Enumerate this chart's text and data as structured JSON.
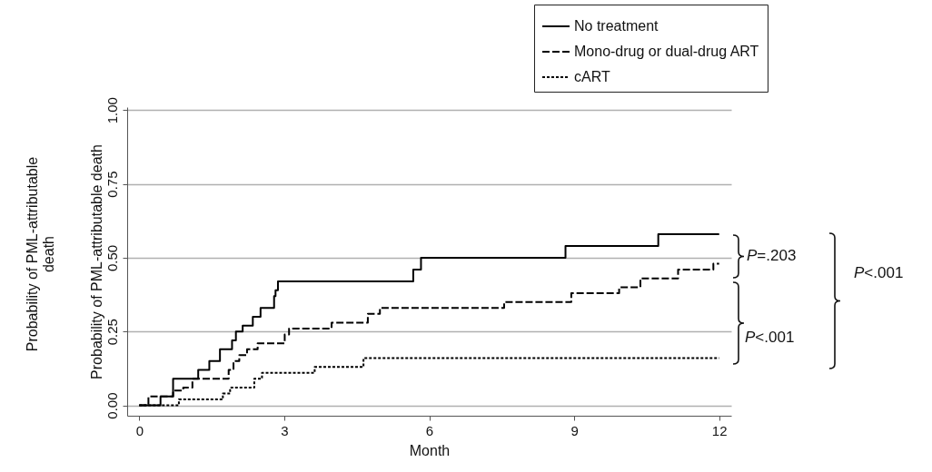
{
  "chart_data": {
    "type": "step",
    "xlabel": "Month",
    "ylabel": "Probability of PML-attributable death",
    "xlim": [
      -0.25,
      12.25
    ],
    "ylim": [
      -0.035,
      1.01
    ],
    "xticks": [
      0,
      3,
      6,
      9,
      12
    ],
    "yticks": [
      {
        "value": 0,
        "label": "0.00"
      },
      {
        "value": 0.25,
        "label": "0.25"
      },
      {
        "value": 0.5,
        "label": "0.50"
      },
      {
        "value": 0.75,
        "label": "0.75"
      },
      {
        "value": 1,
        "label": "1.00"
      }
    ],
    "grid": "y",
    "legend": "top right",
    "annotations": [
      "P=.203",
      "P<.001",
      "P<.001",
      "Probability of PML-attributable death"
    ],
    "series": [
      {
        "name": "No treatment",
        "color": "#000000",
        "line_style": "solid",
        "x": [
          0,
          0.44,
          0.7,
          1.22,
          1.45,
          1.67,
          1.92,
          2.0,
          2.14,
          2.35,
          2.51,
          2.79,
          2.82,
          2.87,
          5.67,
          5.83,
          8.82,
          10.74,
          12
        ],
        "values": [
          0,
          0.03,
          0.09,
          0.12,
          0.15,
          0.19,
          0.22,
          0.25,
          0.27,
          0.3,
          0.33,
          0.37,
          0.39,
          0.42,
          0.46,
          0.5,
          0.54,
          0.58,
          0.58
        ]
      },
      {
        "name": "Mono-drug or dual-drug ART",
        "color": "#000000",
        "line_style": "dashed",
        "x": [
          0,
          0.19,
          0.7,
          0.91,
          1.1,
          1.85,
          1.95,
          2.07,
          2.23,
          2.45,
          3.01,
          3.1,
          3.98,
          4.73,
          4.98,
          7.55,
          8.94,
          9.93,
          10.37,
          11.15,
          11.88,
          12
        ],
        "values": [
          0,
          0.03,
          0.05,
          0.06,
          0.09,
          0.12,
          0.15,
          0.17,
          0.19,
          0.21,
          0.24,
          0.26,
          0.28,
          0.31,
          0.33,
          0.35,
          0.38,
          0.4,
          0.43,
          0.46,
          0.48,
          0.48
        ]
      },
      {
        "name": "cART",
        "color": "#000000",
        "line_style": "dotted",
        "x": [
          0,
          0.82,
          1.73,
          1.88,
          2.38,
          2.54,
          3.63,
          4.64,
          12
        ],
        "values": [
          0,
          0.02,
          0.04,
          0.06,
          0.09,
          0.11,
          0.13,
          0.16,
          0.16
        ]
      }
    ]
  }
}
